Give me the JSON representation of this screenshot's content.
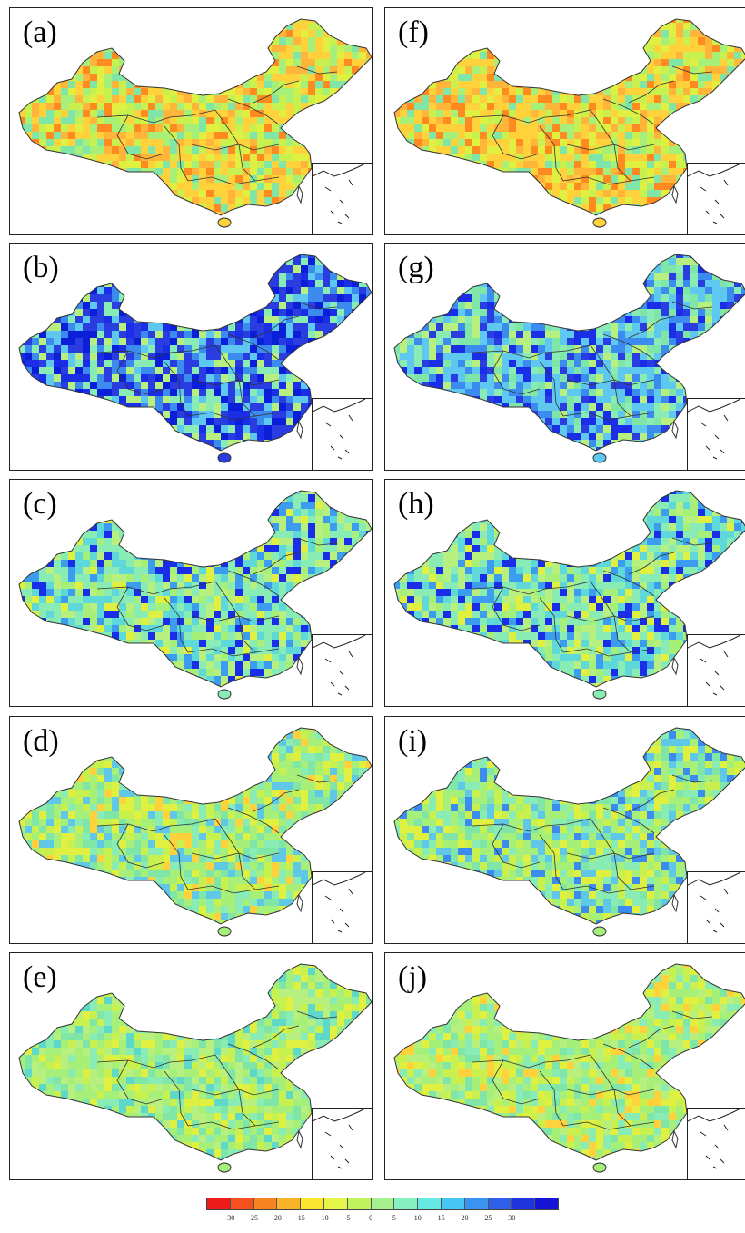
{
  "panels": [
    {
      "label": "(a)",
      "palette": [
        "#ffd23c",
        "#c8f04e",
        "#a6f07a",
        "#ffb43a",
        "#e0f040",
        "#7fe6a8",
        "#ff8a20"
      ]
    },
    {
      "label": "(b)",
      "palette": [
        "#2a3de0",
        "#0b1fd8",
        "#3c8cf0",
        "#5ec8f0",
        "#88ecb4",
        "#b8f080",
        "#1a2ee8"
      ]
    },
    {
      "label": "(c)",
      "palette": [
        "#88ecb4",
        "#5ed8d8",
        "#b8f080",
        "#3c9cf0",
        "#1a2ee8",
        "#a6f07a",
        "#e0f040"
      ]
    },
    {
      "label": "(d)",
      "palette": [
        "#a6f07a",
        "#7fe6a8",
        "#c8f04e",
        "#5ec8e6",
        "#e0f040",
        "#88ecb4",
        "#ffd23c"
      ]
    },
    {
      "label": "(e)",
      "palette": [
        "#a6f07a",
        "#b8f080",
        "#7fe6a8",
        "#c8f04e",
        "#88ecb4",
        "#5ed8c8",
        "#e0f040"
      ]
    },
    {
      "label": "(f)",
      "palette": [
        "#ffd23c",
        "#e0f040",
        "#ffb43a",
        "#a6f07a",
        "#ff8a20",
        "#7fe6a8",
        "#c8f04e"
      ]
    },
    {
      "label": "(g)",
      "palette": [
        "#5ec8f0",
        "#3c8cf0",
        "#88ecb4",
        "#1a2ee8",
        "#b8f080",
        "#7fe6a8",
        "#2a3de0"
      ]
    },
    {
      "label": "(h)",
      "palette": [
        "#88ecb4",
        "#5ed8d8",
        "#b8f080",
        "#e0f040",
        "#3c9cf0",
        "#a6f07a",
        "#1a2ee8"
      ]
    },
    {
      "label": "(i)",
      "palette": [
        "#a6f07a",
        "#88ecb4",
        "#c8f04e",
        "#5ec8e6",
        "#e0f040",
        "#7fe6a8",
        "#3c8cf0"
      ]
    },
    {
      "label": "(j)",
      "palette": [
        "#a6f07a",
        "#c8f04e",
        "#e0f040",
        "#88ecb4",
        "#b8f080",
        "#ffd23c",
        "#7fe6a8"
      ]
    }
  ],
  "colorbar": {
    "colors": [
      "#ee1b1b",
      "#f5501e",
      "#f7851f",
      "#f8b328",
      "#fde632",
      "#e6f54a",
      "#bff25d",
      "#a3f08c",
      "#87f0c0",
      "#66e8e3",
      "#47c5f5",
      "#3a93f0",
      "#2f60ea",
      "#1f33df",
      "#1515d8"
    ],
    "ticks": [
      "-30",
      "-25",
      "-20",
      "-15",
      "-10",
      "-5",
      "0",
      "5",
      "10",
      "15",
      "20",
      "25",
      "30"
    ]
  }
}
